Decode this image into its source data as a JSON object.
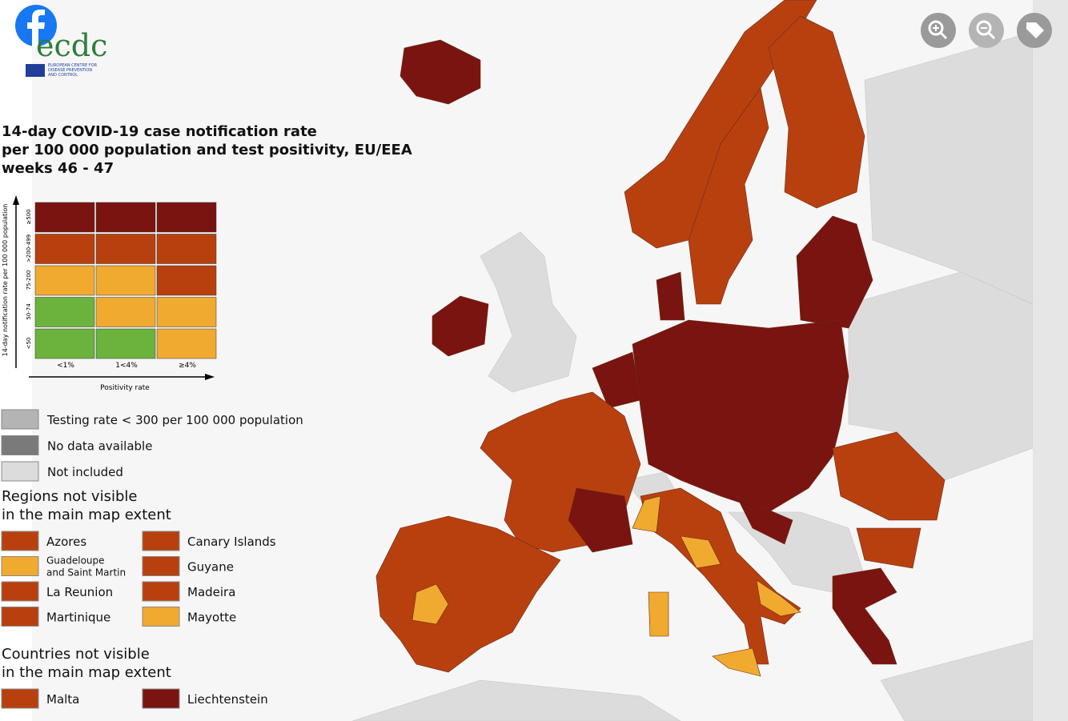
{
  "logo": {
    "name": "ecdc",
    "subtitle": [
      "EUROPEAN CENTRE FOR",
      "DISEASE PREVENTION",
      "AND CONTROL"
    ]
  },
  "title": [
    "14-day COVID-19 case notification rate",
    "per 100 000 population and test positivity, EU/EEA",
    "weeks 46 - 47"
  ],
  "matrix": {
    "y_axis_label": "14-day notification rate per 100 000 population",
    "x_axis_label": "Positivity rate",
    "rows": [
      "≥500",
      ">200-499",
      "75-200",
      "50-74",
      "<50"
    ],
    "columns": [
      "<1%",
      "1<4%",
      "≥4%"
    ],
    "cells": [
      [
        "#7a1410",
        "#7a1410",
        "#7a1410"
      ],
      [
        "#b8400f",
        "#b8400f",
        "#b8400f"
      ],
      [
        "#f0aa30",
        "#f0aa30",
        "#b8400f"
      ],
      [
        "#6bb33c",
        "#f0aa30",
        "#f0aa30"
      ],
      [
        "#6bb33c",
        "#6bb33c",
        "#f0aa30"
      ]
    ]
  },
  "legend": [
    {
      "label": "Testing rate < 300 per 100 000 population",
      "color": "#b4b4b4"
    },
    {
      "label": "No data available",
      "color": "#7a7a7a"
    },
    {
      "label": "Not included",
      "color": "#dcdcdc"
    }
  ],
  "regions": {
    "title": [
      "Regions not visible",
      "in the main map extent"
    ],
    "items": [
      {
        "label": [
          "Azores"
        ],
        "color": "#b8400f"
      },
      {
        "label": [
          "Canary Islands"
        ],
        "color": "#b8400f"
      },
      {
        "label": [
          "Guadeloupe",
          "and Saint Martin"
        ],
        "color": "#f0aa30"
      },
      {
        "label": [
          "Guyane"
        ],
        "color": "#b8400f"
      },
      {
        "label": [
          "La Reunion"
        ],
        "color": "#b8400f"
      },
      {
        "label": [
          "Madeira"
        ],
        "color": "#b8400f"
      },
      {
        "label": [
          "Martinique"
        ],
        "color": "#b8400f"
      },
      {
        "label": [
          "Mayotte"
        ],
        "color": "#f0aa30"
      }
    ]
  },
  "countries": {
    "title": [
      "Countries not visible",
      "in the main map extent"
    ],
    "items": [
      {
        "label": [
          "Malta"
        ],
        "color": "#b8400f"
      },
      {
        "label": [
          "Liechtenstein"
        ],
        "color": "#7a1410"
      }
    ]
  }
}
